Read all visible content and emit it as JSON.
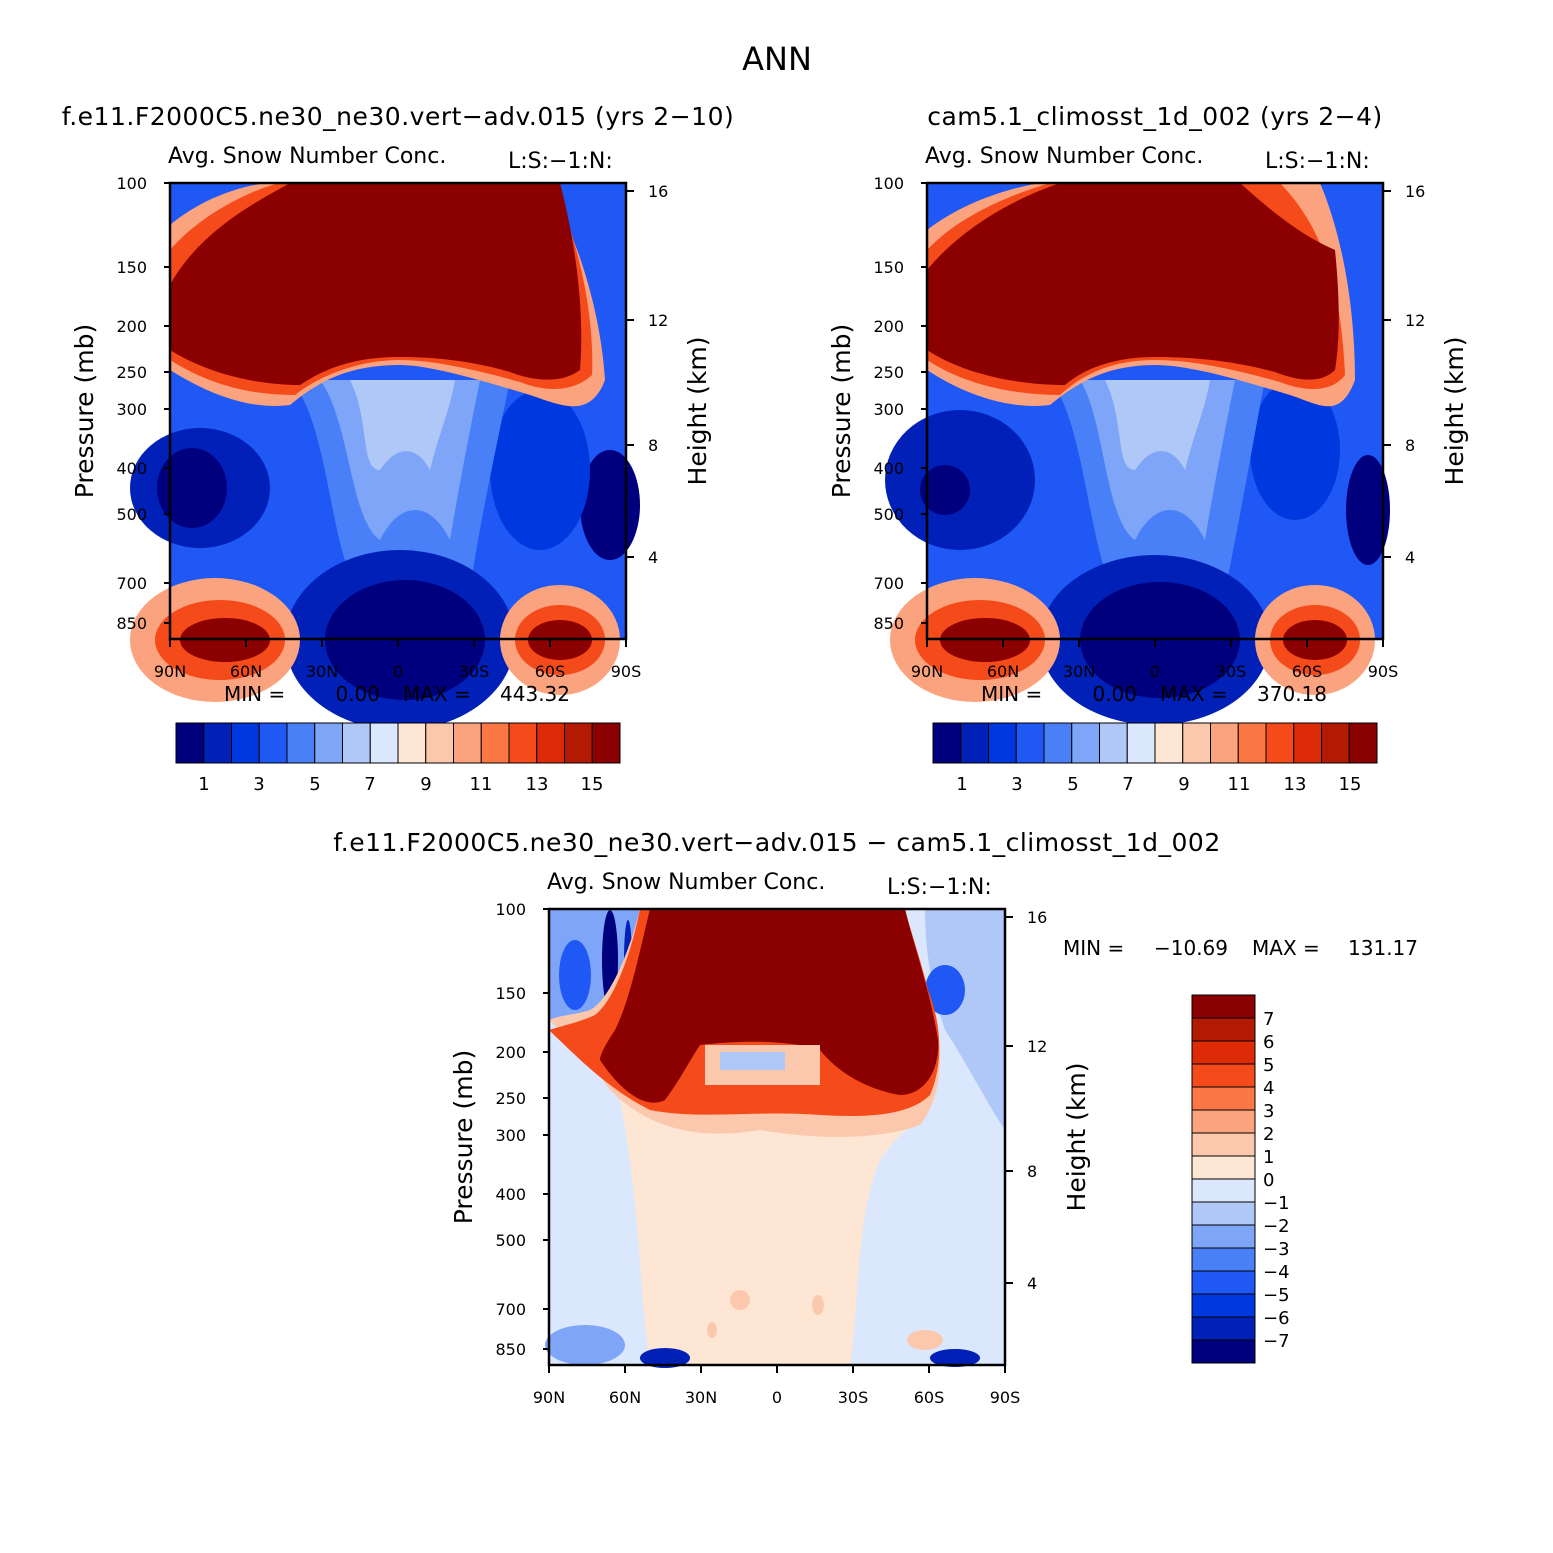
{
  "figure_title": "ANN",
  "colors": {
    "main_levels": [
      "#00007f",
      "#0020b8",
      "#0038e0",
      "#1f58f5",
      "#4a80f7",
      "#7ea5f7",
      "#b0c8f8",
      "#dbe7fc",
      "#fde7d4",
      "#fcc8ad",
      "#fba37e",
      "#fb7845",
      "#f54a1a",
      "#dc2b06",
      "#b21a04",
      "#8b0000"
    ],
    "diff_levels": [
      "#00007f",
      "#0020b8",
      "#0038e0",
      "#1f58f5",
      "#4a80f7",
      "#7ea5f7",
      "#b0c8f8",
      "#dbe7fc",
      "#fde7d4",
      "#fcc8ad",
      "#fba37e",
      "#fb7845",
      "#f54a1a",
      "#dc2b06",
      "#b21a04",
      "#8b0000"
    ]
  },
  "chart_data": [
    {
      "type": "heatmap",
      "title": "f.e11.F2000C5.ne30_ne30.vert−adv.015 (yrs 2−10)",
      "subtitle": "Avg. Snow Number Conc.",
      "units": "L:S:−1:N:",
      "xlabel": "",
      "ylabel": "Pressure (mb)",
      "y2label": "Height (km)",
      "x_ticks": [
        "90N",
        "60N",
        "30N",
        "0",
        "30S",
        "60S",
        "90S"
      ],
      "y_ticks": [
        "100",
        "150",
        "200",
        "250",
        "300",
        "400",
        "500",
        "700",
        "850"
      ],
      "y2_ticks": [
        "16",
        "12",
        "8",
        "4"
      ],
      "ylim": [
        100,
        1000
      ],
      "min_label": "MIN =",
      "min_value": "0.00",
      "max_label": "MAX =",
      "max_value": "443.32",
      "colorbar_labels": [
        "1",
        "3",
        "5",
        "7",
        "9",
        "11",
        "13",
        "15"
      ]
    },
    {
      "type": "heatmap",
      "title": "cam5.1_climosst_1d_002 (yrs 2−4)",
      "subtitle": "Avg. Snow Number Conc.",
      "units": "L:S:−1:N:",
      "xlabel": "",
      "ylabel": "Pressure (mb)",
      "y2label": "Height (km)",
      "x_ticks": [
        "90N",
        "60N",
        "30N",
        "0",
        "30S",
        "60S",
        "90S"
      ],
      "y_ticks": [
        "100",
        "150",
        "200",
        "250",
        "300",
        "400",
        "500",
        "700",
        "850"
      ],
      "y2_ticks": [
        "16",
        "12",
        "8",
        "4"
      ],
      "ylim": [
        100,
        1000
      ],
      "min_label": "MIN =",
      "min_value": "0.00",
      "max_label": "MAX =",
      "max_value": "370.18",
      "colorbar_labels": [
        "1",
        "3",
        "5",
        "7",
        "9",
        "11",
        "13",
        "15"
      ]
    },
    {
      "type": "heatmap",
      "title": "f.e11.F2000C5.ne30_ne30.vert−adv.015 − cam5.1_climosst_1d_002",
      "subtitle": "Avg. Snow Number Conc.",
      "units": "L:S:−1:N:",
      "xlabel": "",
      "ylabel": "Pressure (mb)",
      "y2label": "Height (km)",
      "x_ticks": [
        "90N",
        "60N",
        "30N",
        "0",
        "30S",
        "60S",
        "90S"
      ],
      "y_ticks": [
        "100",
        "150",
        "200",
        "250",
        "300",
        "400",
        "500",
        "700",
        "850"
      ],
      "y2_ticks": [
        "16",
        "12",
        "8",
        "4"
      ],
      "ylim": [
        100,
        1000
      ],
      "min_label": "MIN =",
      "min_value": "−10.69",
      "max_label": "MAX =",
      "max_value": "131.17",
      "colorbar_labels": [
        "7",
        "6",
        "5",
        "4",
        "3",
        "2",
        "1",
        "0",
        "−1",
        "−2",
        "−3",
        "−4",
        "−5",
        "−6",
        "−7"
      ]
    }
  ]
}
